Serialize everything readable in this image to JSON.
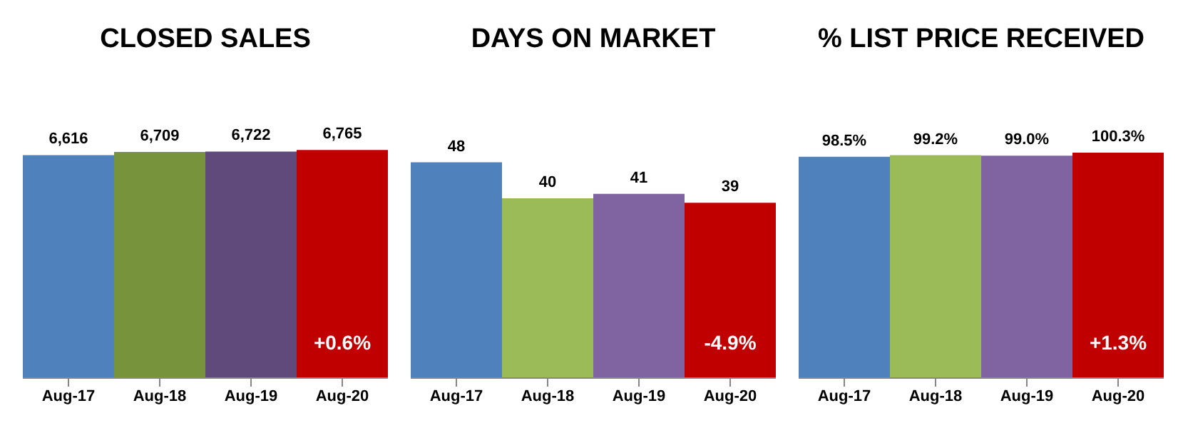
{
  "chart_data": [
    {
      "type": "bar",
      "title": "CLOSED SALES",
      "categories": [
        "Aug-17",
        "Aug-18",
        "Aug-19",
        "Aug-20"
      ],
      "values": [
        6616,
        6709,
        6722,
        6765
      ],
      "colors": [
        "#4f81bd",
        "#77933c",
        "#604a7b",
        "#c00000"
      ],
      "value_labels": [
        "6,616",
        "6,709",
        "6,722",
        "6,765"
      ],
      "tick_labels": "x",
      "annotations": [
        "+0.6%"
      ]
    },
    {
      "type": "bar",
      "title": "DAYS ON MARKET",
      "categories": [
        "Aug-17",
        "Aug-18",
        "Aug-19",
        "Aug-20"
      ],
      "values": [
        48,
        40,
        41,
        39
      ],
      "colors": [
        "#4f81bd",
        "#9bbb59",
        "#8064a2",
        "#c00000"
      ],
      "data_labels": true,
      "tick_labels": "x",
      "annotations": [
        "-4.9%"
      ]
    },
    {
      "type": "bar",
      "title": "% LIST PRICE RECEIVED",
      "categories": [
        "Aug-17",
        "Aug-18",
        "Aug-19",
        "Aug-20"
      ],
      "values": [
        98.5,
        99.2,
        99.0,
        100.3
      ],
      "colors": [
        "#4f81bd",
        "#9bbb59",
        "#8064a2",
        "#c00000"
      ],
      "value_labels": [
        "98.5%",
        "99.2%",
        "99.0%",
        "100.3%"
      ],
      "tick_labels": "x",
      "annotations": [
        "+1.3%"
      ]
    }
  ]
}
